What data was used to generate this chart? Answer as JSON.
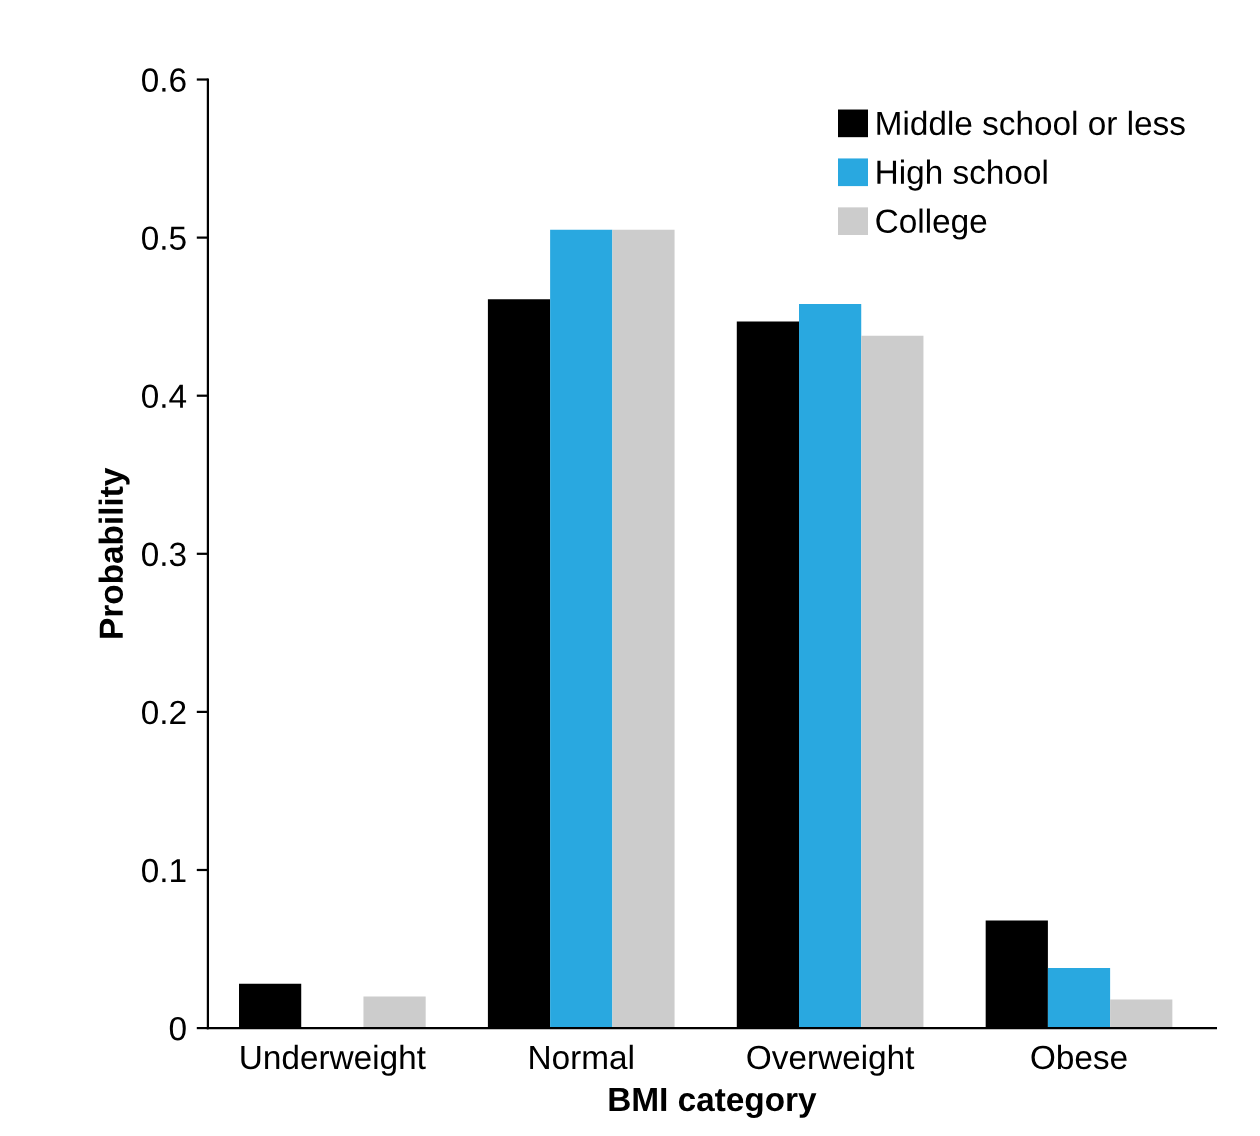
{
  "chart_data": {
    "type": "bar",
    "xlabel": "BMI category",
    "ylabel": "Probability",
    "categories": [
      "Underweight",
      "Normal",
      "Overweight",
      "Obese"
    ],
    "series": [
      {
        "name": "Middle school or less",
        "color": "#000000",
        "values": [
          0.028,
          0.461,
          0.447,
          0.068
        ]
      },
      {
        "name": "High school",
        "color": "#29a8e0",
        "values": [
          0,
          0.505,
          0.458,
          0.038
        ]
      },
      {
        "name": "College",
        "color": "#cccccc",
        "values": [
          0.02,
          0.505,
          0.438,
          0.018
        ]
      }
    ],
    "ylim": [
      0,
      0.6
    ],
    "yticks": [
      {
        "value": 0,
        "label": "0"
      },
      0.1,
      0.2,
      0.3,
      0.4,
      0.5,
      0.6
    ],
    "grid": false,
    "legend": "top right"
  }
}
